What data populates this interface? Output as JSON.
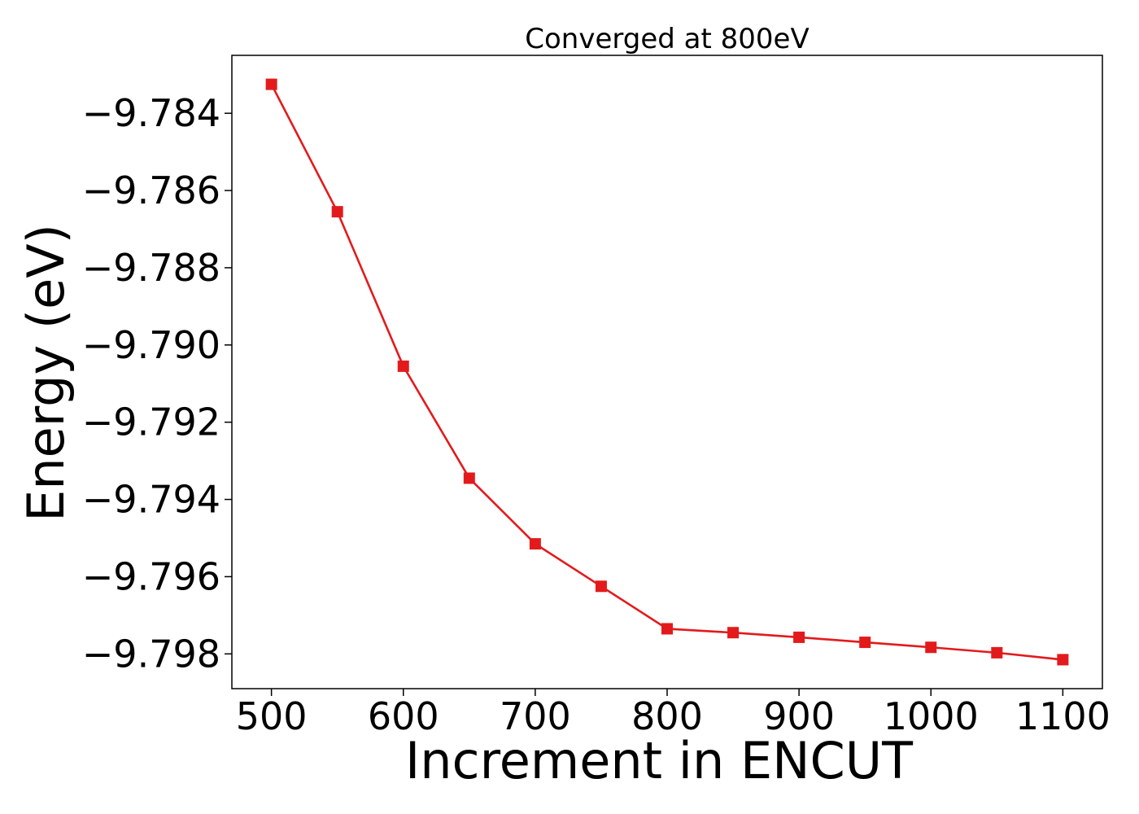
{
  "chart_data": {
    "type": "line",
    "title": "Converged at 800eV",
    "xlabel": "Increment in ENCUT",
    "ylabel": "Energy (eV)",
    "x": [
      500,
      550,
      600,
      650,
      700,
      750,
      800,
      850,
      900,
      950,
      1000,
      1050,
      1100
    ],
    "series": [
      {
        "name": "",
        "marker": "square",
        "color": "#e31a1c",
        "values": [
          -9.78325,
          -9.78655,
          -9.79055,
          -9.79345,
          -9.79515,
          -9.79625,
          -9.79735,
          -9.79745,
          -9.79757,
          -9.7977,
          -9.79783,
          -9.79797,
          -9.79815
        ]
      }
    ],
    "xticks": [
      500,
      600,
      700,
      800,
      900,
      1000,
      1100
    ],
    "xtick_labels": [
      "500",
      "600",
      "700",
      "800",
      "900",
      "1000",
      "1100"
    ],
    "yticks": [
      -9.784,
      -9.786,
      -9.788,
      -9.79,
      -9.792,
      -9.794,
      -9.796,
      -9.798
    ],
    "ytick_labels": [
      "−9.784",
      "−9.786",
      "−9.788",
      "−9.790",
      "−9.792",
      "−9.794",
      "−9.796",
      "−9.798"
    ],
    "xlim": [
      470,
      1130
    ],
    "ylim": [
      -9.7989,
      -9.7825
    ],
    "grid": false,
    "legend": "none"
  }
}
